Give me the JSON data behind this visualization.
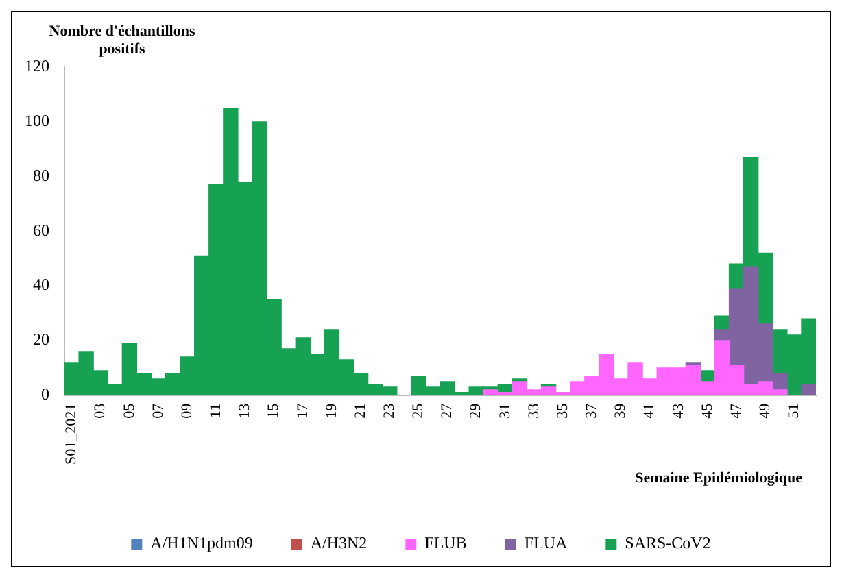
{
  "chart_data": {
    "type": "bar",
    "stacked": true,
    "ylabel": "Nombre d'échantillons positifs",
    "xlabel": "Semaine Epidémiologique",
    "categories": [
      "S01_2021",
      null,
      "03",
      null,
      "05",
      null,
      "07",
      null,
      "09",
      null,
      "11",
      null,
      "13",
      null,
      "15",
      null,
      "17",
      null,
      "19",
      null,
      "21",
      null,
      "23",
      null,
      "25",
      null,
      "27",
      null,
      "29",
      null,
      "31",
      null,
      "33",
      null,
      "35",
      null,
      "37",
      null,
      "39",
      null,
      "41",
      null,
      "43",
      null,
      "45",
      null,
      "47",
      null,
      "49",
      null,
      "51",
      null
    ],
    "ylim": [
      0,
      120
    ],
    "yticks": [
      0,
      20,
      40,
      60,
      80,
      100,
      120
    ],
    "grid": false,
    "legend": "bottom",
    "series": [
      {
        "name": "A/H1N1pdm09",
        "color": "#4f81bd",
        "values": [
          null,
          null,
          null,
          null,
          null,
          null,
          null,
          null,
          null,
          null,
          null,
          null,
          null,
          null,
          null,
          null,
          null,
          null,
          null,
          null,
          null,
          null,
          null,
          null,
          null,
          null,
          null,
          null,
          null,
          null,
          null,
          null,
          null,
          null,
          null,
          null,
          null,
          null,
          null,
          null,
          null,
          null,
          null,
          null,
          null,
          null,
          null,
          null,
          null,
          null,
          null,
          null
        ]
      },
      {
        "name": "A/H3N2",
        "color": "#c0504d",
        "values": [
          null,
          null,
          null,
          null,
          null,
          null,
          null,
          null,
          null,
          null,
          null,
          null,
          null,
          null,
          null,
          null,
          null,
          null,
          null,
          null,
          null,
          null,
          null,
          null,
          null,
          null,
          null,
          null,
          null,
          null,
          null,
          null,
          null,
          null,
          null,
          null,
          null,
          null,
          null,
          null,
          null,
          null,
          null,
          null,
          null,
          null,
          null,
          null,
          null,
          null,
          null,
          null
        ]
      },
      {
        "name": "FLUB",
        "color": "#ff66ff",
        "values": [
          null,
          null,
          null,
          null,
          null,
          null,
          null,
          null,
          null,
          null,
          null,
          null,
          null,
          null,
          null,
          null,
          null,
          null,
          null,
          null,
          null,
          null,
          null,
          null,
          null,
          null,
          null,
          null,
          null,
          2,
          1,
          5,
          2,
          3,
          1,
          5,
          7,
          15,
          6,
          12,
          6,
          10,
          10,
          11,
          5,
          20,
          11,
          4,
          5,
          2,
          null,
          null
        ]
      },
      {
        "name": "FLUA",
        "color": "#8064a2",
        "values": [
          null,
          null,
          null,
          null,
          null,
          null,
          null,
          null,
          null,
          null,
          null,
          null,
          null,
          null,
          null,
          null,
          null,
          null,
          null,
          null,
          null,
          null,
          null,
          null,
          null,
          null,
          null,
          null,
          null,
          null,
          null,
          null,
          null,
          null,
          null,
          null,
          null,
          null,
          null,
          null,
          null,
          null,
          null,
          1,
          null,
          4,
          28,
          43,
          21,
          6,
          null,
          4
        ]
      },
      {
        "name": "SARS-CoV2",
        "color": "#17a253",
        "values": [
          12,
          16,
          9,
          4,
          19,
          8,
          6,
          8,
          14,
          51,
          77,
          105,
          78,
          100,
          35,
          17,
          21,
          15,
          24,
          13,
          8,
          4,
          3,
          null,
          7,
          3,
          5,
          1,
          3,
          1,
          3,
          1,
          null,
          1,
          null,
          null,
          null,
          null,
          null,
          null,
          null,
          null,
          null,
          null,
          4,
          5,
          9,
          40,
          26,
          16,
          22,
          24
        ]
      }
    ]
  }
}
